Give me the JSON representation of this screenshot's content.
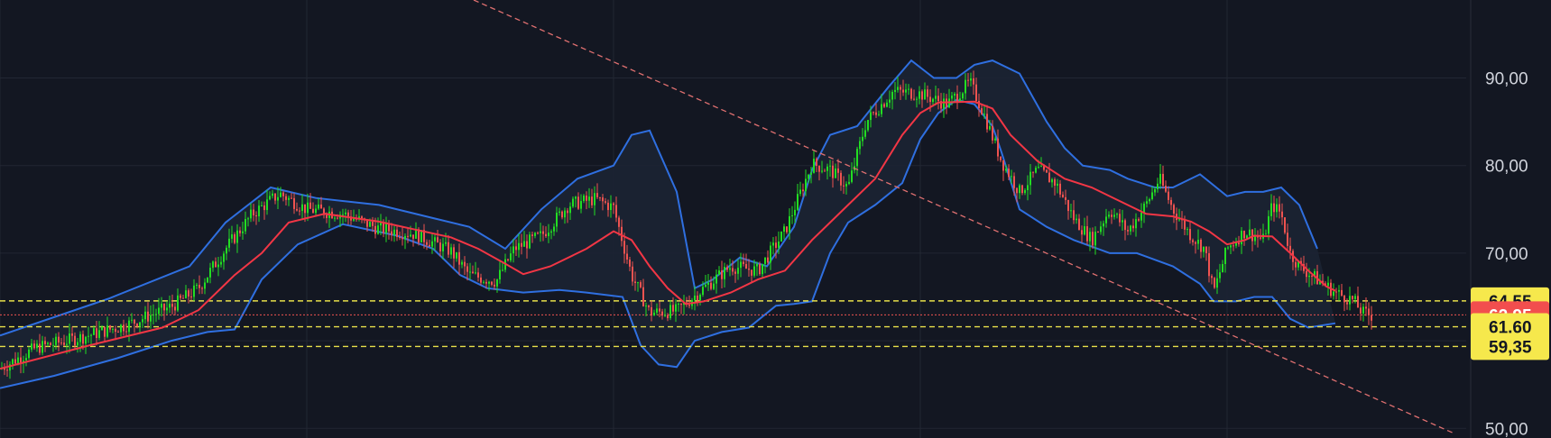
{
  "chart_data": {
    "type": "candlestick",
    "title": "",
    "xlabel": "",
    "ylabel": "",
    "ylim": [
      48.9,
      98.9
    ],
    "yticks": [
      {
        "value": 90,
        "label": "90,00"
      },
      {
        "value": 80,
        "label": "80,00"
      },
      {
        "value": 70,
        "label": "70,00"
      },
      {
        "value": 50,
        "label": "50,00"
      }
    ],
    "grid": true,
    "colors": {
      "background": "#131722",
      "grid": "#222733",
      "up": "#22dd22",
      "down": "#ef5350",
      "ma": "#f23645",
      "band": "#2f6fe0",
      "band_fill": "#1c2433",
      "level": "#e8e04a",
      "trendline": "#e07070",
      "tag_yellow": "#f6e84c",
      "tag_red": "#f24e4e"
    },
    "price_anchors": [
      [
        0,
        56.8
      ],
      [
        40,
        59.2
      ],
      [
        90,
        60.4
      ],
      [
        140,
        61.8
      ],
      [
        190,
        63.9
      ],
      [
        220,
        66.0
      ],
      [
        250,
        70.5
      ],
      [
        280,
        74.5
      ],
      [
        310,
        76.8
      ],
      [
        340,
        75.0
      ],
      [
        380,
        74.5
      ],
      [
        420,
        72.8
      ],
      [
        460,
        72.2
      ],
      [
        500,
        70.2
      ],
      [
        520,
        67.5
      ],
      [
        550,
        66.8
      ],
      [
        570,
        70.5
      ],
      [
        600,
        72.0
      ],
      [
        630,
        75.5
      ],
      [
        660,
        76.2
      ],
      [
        680,
        75.2
      ],
      [
        700,
        67.5
      ],
      [
        720,
        63.2
      ],
      [
        750,
        63.4
      ],
      [
        780,
        66.0
      ],
      [
        810,
        68.5
      ],
      [
        840,
        68.0
      ],
      [
        870,
        72.5
      ],
      [
        900,
        80.2
      ],
      [
        920,
        79.5
      ],
      [
        940,
        77.5
      ],
      [
        960,
        85.0
      ],
      [
        990,
        88.5
      ],
      [
        1020,
        88.2
      ],
      [
        1050,
        87.0
      ],
      [
        1075,
        89.5
      ],
      [
        1090,
        86.0
      ],
      [
        1110,
        80.5
      ],
      [
        1130,
        77.0
      ],
      [
        1150,
        79.5
      ],
      [
        1170,
        78.0
      ],
      [
        1190,
        74.0
      ],
      [
        1210,
        71.5
      ],
      [
        1230,
        75.0
      ],
      [
        1250,
        72.5
      ],
      [
        1270,
        75.5
      ],
      [
        1285,
        78.5
      ],
      [
        1300,
        75.0
      ],
      [
        1320,
        72.0
      ],
      [
        1335,
        70.5
      ],
      [
        1345,
        65.5
      ],
      [
        1360,
        70.5
      ],
      [
        1380,
        72.5
      ],
      [
        1400,
        71.5
      ],
      [
        1410,
        75.5
      ],
      [
        1420,
        74.5
      ],
      [
        1430,
        70.0
      ],
      [
        1440,
        68.5
      ],
      [
        1460,
        67.0
      ],
      [
        1480,
        65.5
      ],
      [
        1500,
        64.6
      ],
      [
        1510,
        63.2
      ],
      [
        1520,
        62.9
      ],
      [
        1522,
        62.95
      ]
    ],
    "bollinger_upper": [
      [
        0,
        60.6
      ],
      [
        120,
        64.8
      ],
      [
        210,
        68.5
      ],
      [
        250,
        73.5
      ],
      [
        300,
        77.5
      ],
      [
        350,
        76.3
      ],
      [
        420,
        75.5
      ],
      [
        480,
        74.0
      ],
      [
        520,
        73.0
      ],
      [
        560,
        70.5
      ],
      [
        600,
        75.0
      ],
      [
        640,
        78.5
      ],
      [
        680,
        80.0
      ],
      [
        700,
        83.5
      ],
      [
        720,
        84.0
      ],
      [
        750,
        77.0
      ],
      [
        770,
        66.0
      ],
      [
        790,
        67.0
      ],
      [
        820,
        69.5
      ],
      [
        850,
        68.5
      ],
      [
        880,
        73.0
      ],
      [
        900,
        79.5
      ],
      [
        920,
        83.5
      ],
      [
        950,
        84.5
      ],
      [
        985,
        89.0
      ],
      [
        1010,
        92.0
      ],
      [
        1035,
        90.0
      ],
      [
        1060,
        90.0
      ],
      [
        1080,
        91.5
      ],
      [
        1100,
        92.0
      ],
      [
        1130,
        90.5
      ],
      [
        1160,
        85.0
      ],
      [
        1180,
        82.0
      ],
      [
        1200,
        80.0
      ],
      [
        1230,
        79.5
      ],
      [
        1250,
        78.5
      ],
      [
        1280,
        77.5
      ],
      [
        1300,
        77.5
      ],
      [
        1330,
        79.0
      ],
      [
        1360,
        76.5
      ],
      [
        1380,
        77.0
      ],
      [
        1400,
        77.0
      ],
      [
        1420,
        77.5
      ],
      [
        1440,
        75.5
      ],
      [
        1460,
        70.5
      ]
    ],
    "bollinger_lower": [
      [
        0,
        54.6
      ],
      [
        60,
        56.0
      ],
      [
        130,
        58.0
      ],
      [
        190,
        60.0
      ],
      [
        230,
        61.0
      ],
      [
        260,
        61.3
      ],
      [
        290,
        67.0
      ],
      [
        330,
        71.0
      ],
      [
        380,
        73.3
      ],
      [
        440,
        72.0
      ],
      [
        480,
        70.5
      ],
      [
        510,
        67.5
      ],
      [
        540,
        66.0
      ],
      [
        580,
        65.5
      ],
      [
        620,
        65.8
      ],
      [
        650,
        65.5
      ],
      [
        690,
        65.0
      ],
      [
        710,
        59.5
      ],
      [
        730,
        57.3
      ],
      [
        750,
        57.0
      ],
      [
        770,
        60.0
      ],
      [
        800,
        61.0
      ],
      [
        830,
        61.5
      ],
      [
        860,
        64.0
      ],
      [
        880,
        64.2
      ],
      [
        900,
        64.5
      ],
      [
        920,
        70.0
      ],
      [
        940,
        73.5
      ],
      [
        970,
        75.5
      ],
      [
        1000,
        78.0
      ],
      [
        1020,
        83.0
      ],
      [
        1040,
        86.0
      ],
      [
        1060,
        87.5
      ],
      [
        1080,
        87.0
      ],
      [
        1100,
        84.5
      ],
      [
        1110,
        81.5
      ],
      [
        1130,
        75.0
      ],
      [
        1160,
        73.0
      ],
      [
        1190,
        71.5
      ],
      [
        1230,
        70.0
      ],
      [
        1260,
        70.0
      ],
      [
        1300,
        68.5
      ],
      [
        1330,
        66.5
      ],
      [
        1345,
        64.5
      ],
      [
        1370,
        64.5
      ],
      [
        1390,
        65.0
      ],
      [
        1410,
        65.0
      ],
      [
        1430,
        62.5
      ],
      [
        1450,
        61.5
      ],
      [
        1480,
        62.0
      ]
    ],
    "moving_average": [
      [
        0,
        56.8
      ],
      [
        100,
        59.5
      ],
      [
        180,
        61.5
      ],
      [
        220,
        63.5
      ],
      [
        260,
        67.5
      ],
      [
        290,
        70.0
      ],
      [
        320,
        73.5
      ],
      [
        360,
        74.5
      ],
      [
        420,
        73.6
      ],
      [
        460,
        72.7
      ],
      [
        500,
        71.8
      ],
      [
        530,
        70.5
      ],
      [
        560,
        68.8
      ],
      [
        580,
        67.6
      ],
      [
        610,
        68.5
      ],
      [
        650,
        70.5
      ],
      [
        680,
        72.5
      ],
      [
        700,
        71.5
      ],
      [
        720,
        68.5
      ],
      [
        740,
        66.0
      ],
      [
        760,
        64.2
      ],
      [
        780,
        64.5
      ],
      [
        810,
        65.5
      ],
      [
        840,
        67.0
      ],
      [
        870,
        68.0
      ],
      [
        900,
        71.5
      ],
      [
        940,
        75.5
      ],
      [
        970,
        78.5
      ],
      [
        1000,
        83.5
      ],
      [
        1020,
        86.0
      ],
      [
        1040,
        87.2
      ],
      [
        1080,
        87.3
      ],
      [
        1100,
        86.5
      ],
      [
        1120,
        83.5
      ],
      [
        1150,
        80.5
      ],
      [
        1180,
        78.5
      ],
      [
        1210,
        77.5
      ],
      [
        1240,
        76.0
      ],
      [
        1270,
        74.5
      ],
      [
        1300,
        74.2
      ],
      [
        1320,
        73.6
      ],
      [
        1340,
        72.5
      ],
      [
        1360,
        71.0
      ],
      [
        1380,
        71.5
      ],
      [
        1390,
        72.0
      ],
      [
        1410,
        71.9
      ],
      [
        1430,
        70.0
      ],
      [
        1450,
        68.0
      ],
      [
        1470,
        66.2
      ],
      [
        1480,
        65.7
      ]
    ],
    "trendline": [
      [
        525,
        98.9
      ],
      [
        1610,
        49.5
      ]
    ],
    "levels": [
      64.55,
      62.95,
      61.6,
      59.35
    ],
    "price_tags": [
      {
        "value": 64.55,
        "label": "64,55",
        "style": "yellow"
      },
      {
        "value": 62.95,
        "label": "62,95",
        "style": "red"
      },
      {
        "value": 61.6,
        "label": "61,60",
        "style": "yellow"
      },
      {
        "value": 59.35,
        "label": "59,35",
        "style": "yellow"
      }
    ]
  }
}
